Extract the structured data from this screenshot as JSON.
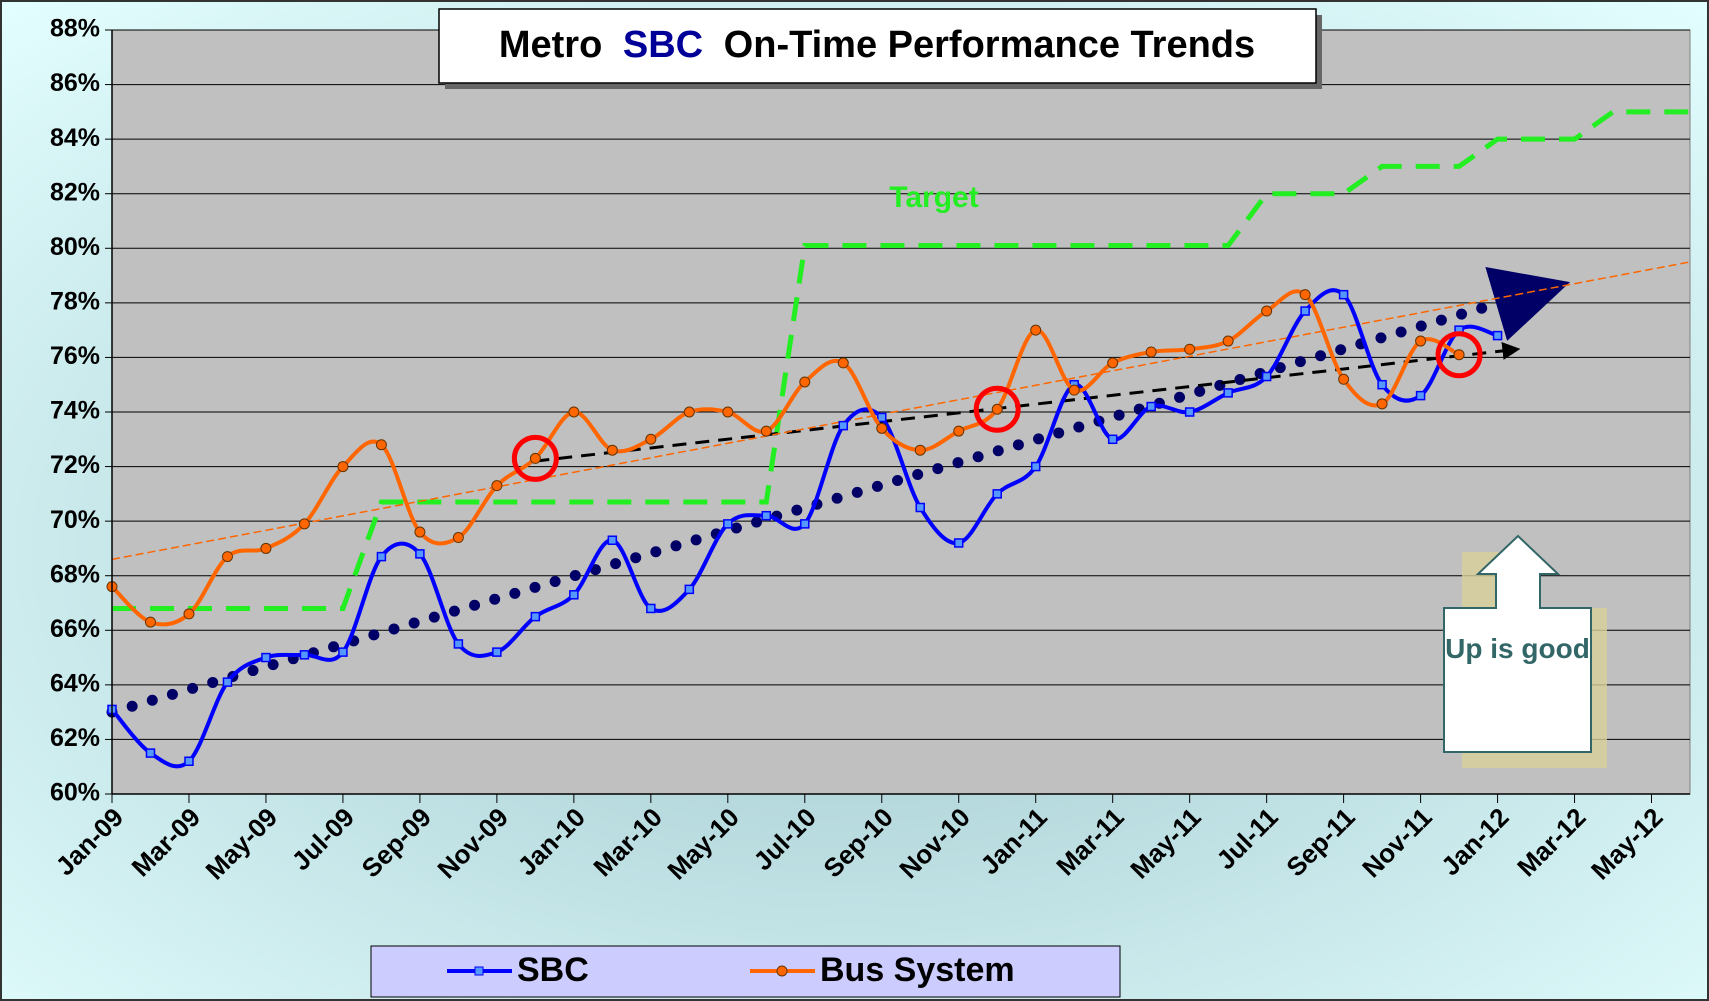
{
  "chart_data": {
    "type": "line",
    "title_parts": [
      "Metro",
      "SBC",
      "On-Time Performance Trends"
    ],
    "title_colors": [
      "#000000",
      "#000099",
      "#000000"
    ],
    "categories": [
      "Jan-09",
      null,
      "Mar-09",
      null,
      "May-09",
      null,
      "Jul-09",
      null,
      "Sep-09",
      null,
      "Nov-09",
      null,
      "Jan-10",
      null,
      "Mar-10",
      null,
      "May-10",
      null,
      "Jul-10",
      null,
      "Sep-10",
      null,
      "Nov-10",
      null,
      "Jan-11",
      null,
      "Mar-11",
      null,
      "May-11",
      null,
      "Jul-11",
      null,
      "Sep-11",
      null,
      "Nov-11",
      null,
      "Jan-12",
      null,
      "Mar-12",
      null,
      "May-12",
      null
    ],
    "series": [
      {
        "name": "SBC",
        "color": "#0000ff",
        "marker": "square",
        "values": [
          63.1,
          61.5,
          61.2,
          64.1,
          65.0,
          65.1,
          65.2,
          68.7,
          68.8,
          65.5,
          65.2,
          66.5,
          67.3,
          69.3,
          66.8,
          67.5,
          69.9,
          70.2,
          69.9,
          73.5,
          73.8,
          70.5,
          69.2,
          71.0,
          72.0,
          75.0,
          73.0,
          74.2,
          74.0,
          74.7,
          75.3,
          77.7,
          78.3,
          75.0,
          74.6,
          77.0,
          76.8,
          null,
          null,
          null,
          null,
          null
        ]
      },
      {
        "name": "Bus System",
        "color": "#ff6600",
        "marker": "circle",
        "values": [
          67.6,
          66.3,
          66.6,
          68.7,
          69.0,
          69.9,
          72.0,
          72.8,
          69.6,
          69.4,
          71.3,
          72.3,
          74.0,
          72.6,
          73.0,
          74.0,
          74.0,
          73.3,
          75.1,
          75.8,
          73.4,
          72.6,
          73.3,
          74.1,
          77.0,
          74.8,
          75.8,
          76.2,
          76.3,
          76.6,
          77.7,
          78.3,
          75.2,
          74.3,
          76.6,
          76.1,
          null,
          null,
          null,
          null,
          null,
          null
        ]
      }
    ],
    "target": {
      "label": "Target",
      "color": "#22ee22",
      "values": [
        66.8,
        66.8,
        66.8,
        66.8,
        66.8,
        66.8,
        66.8,
        70.7,
        70.7,
        70.7,
        70.7,
        70.7,
        70.7,
        70.7,
        70.7,
        70.7,
        70.7,
        70.7,
        80.1,
        80.1,
        80.1,
        80.1,
        80.1,
        80.1,
        80.1,
        80.1,
        80.1,
        80.1,
        80.1,
        80.1,
        82.0,
        82.0,
        82.0,
        83.0,
        83.0,
        83.0,
        84.0,
        84.0,
        84.0,
        85.0,
        85.0,
        85.0
      ]
    },
    "trend_lines": [
      {
        "color": "#000066",
        "style": "dotted",
        "arrow": true,
        "x": [
          0,
          37.5
        ],
        "values": [
          63.0,
          78.6
        ]
      },
      {
        "color": "#000000",
        "style": "dashed",
        "arrow": true,
        "x": [
          11,
          36.5
        ],
        "values": [
          72.2,
          76.3
        ]
      },
      {
        "color": "#ff6600",
        "style": "thin-dashed",
        "arrow": false,
        "x": [
          0,
          41
        ],
        "values": [
          68.6,
          79.5
        ]
      }
    ],
    "highlight": [
      11,
      23,
      35
    ],
    "annotation": "Up is good",
    "ylim": [
      60,
      88
    ],
    "yticks": [
      {
        "value": 60,
        "label": "60%"
      },
      {
        "value": 62,
        "label": "62%"
      },
      {
        "value": 64,
        "label": "64%"
      },
      {
        "value": 66,
        "label": "66%"
      },
      {
        "value": 68,
        "label": "68%"
      },
      {
        "value": 70,
        "label": "70%"
      },
      {
        "value": 72,
        "label": "72%"
      },
      {
        "value": 74,
        "label": "74%"
      },
      {
        "value": 76,
        "label": "76%"
      },
      {
        "value": 78,
        "label": "78%"
      },
      {
        "value": 80,
        "label": "80%"
      },
      {
        "value": 82,
        "label": "82%"
      },
      {
        "value": 84,
        "label": "84%"
      },
      {
        "value": 86,
        "label": "86%"
      },
      {
        "value": 88,
        "label": "88%"
      }
    ],
    "grid": true,
    "legend": "bottom"
  }
}
